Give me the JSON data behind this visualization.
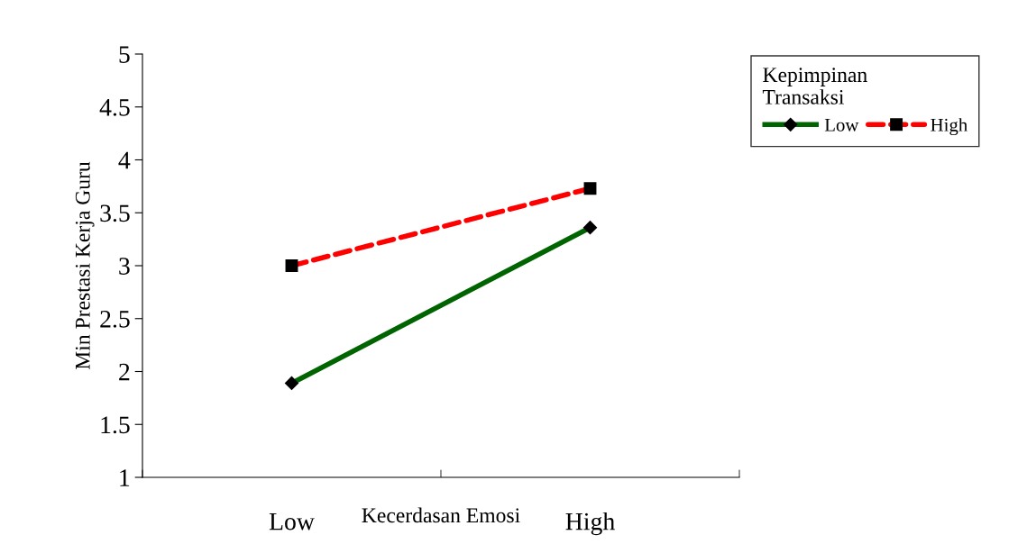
{
  "chart_data": {
    "type": "line",
    "xlabel": "Kecerdasan Emosi",
    "ylabel": "Min Prestasi Kerja Guru",
    "legend_title": "Kepimpinan\nTransaksi",
    "categories": [
      "Low",
      "High"
    ],
    "series": [
      {
        "name": "Low",
        "color": "#006400",
        "values": [
          1.89,
          3.36
        ],
        "marker": "diamond",
        "line_style": "solid"
      },
      {
        "name": "High",
        "color": "#ff0000",
        "values": [
          3.0,
          3.73
        ],
        "marker": "square",
        "line_style": "dashed"
      }
    ],
    "ylim": [
      1,
      5
    ],
    "yticks": [
      1,
      1.5,
      2,
      2.5,
      3,
      3.5,
      4,
      4.5,
      5
    ],
    "grid": false,
    "legend": "right"
  }
}
